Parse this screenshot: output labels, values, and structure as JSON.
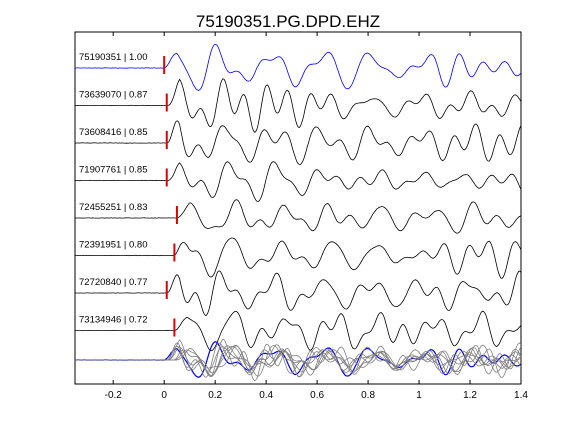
{
  "chart_data": {
    "type": "line",
    "title": "75190351.PG.DPD.EHZ",
    "xlabel": "",
    "ylabel": "",
    "xlim": [
      -0.35,
      1.4
    ],
    "x_ticks": [
      -0.2,
      0,
      0.2,
      0.4,
      0.6,
      0.8,
      1,
      1.2,
      1.4
    ],
    "x_tick_labels": [
      "-0.2",
      "0",
      "0.2",
      "0.4",
      "0.6",
      "0.8",
      "1",
      "1.2",
      "1.4"
    ],
    "grid": false,
    "colors": {
      "reference": "#0000ff",
      "trace": "#000000",
      "pick": "#e00000",
      "overlay": "#808080"
    },
    "series": [
      {
        "name": "75190351",
        "cc": 1.0,
        "label": "75190351 | 1.00",
        "pick_time": 0.0,
        "reference": true
      },
      {
        "name": "73639070",
        "cc": 0.87,
        "label": "73639070 | 0.87",
        "pick_time": 0.01,
        "reference": false
      },
      {
        "name": "73608416",
        "cc": 0.85,
        "label": "73608416 | 0.85",
        "pick_time": 0.01,
        "reference": false
      },
      {
        "name": "71907761",
        "cc": 0.85,
        "label": "71907761 | 0.85",
        "pick_time": 0.01,
        "reference": false
      },
      {
        "name": "72455251",
        "cc": 0.83,
        "label": "72455251 | 0.83",
        "pick_time": 0.05,
        "reference": false
      },
      {
        "name": "72391951",
        "cc": 0.8,
        "label": "72391951 | 0.80",
        "pick_time": 0.04,
        "reference": false
      },
      {
        "name": "72720840",
        "cc": 0.77,
        "label": "72720840 | 0.77",
        "pick_time": 0.01,
        "reference": false
      },
      {
        "name": "73134946",
        "cc": 0.72,
        "label": "73134946 | 0.72",
        "pick_time": 0.04,
        "reference": false
      }
    ],
    "stack": {
      "description_shown": false
    }
  }
}
